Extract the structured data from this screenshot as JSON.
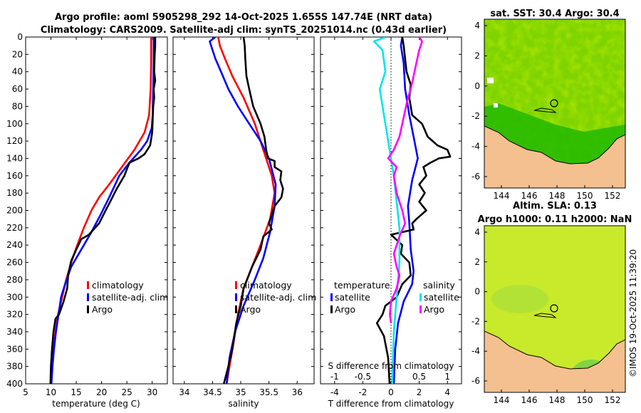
{
  "header": {
    "title_line1": "Argo profile: aoml 5905298_292 14-Oct-2025 1.655S 147.74E (NRT data)",
    "title_line2": "Climatology: CARS2009. Satellite-adj clim: synTS_20251014.nc (0.43d earlier)"
  },
  "chart_data": [
    {
      "type": "line",
      "panel": "temperature",
      "xlabel": "temperature (deg C)",
      "ylabel": "",
      "xlim": [
        5,
        33
      ],
      "ylim": [
        400,
        0
      ],
      "xticks": [
        5,
        10,
        15,
        20,
        25,
        30
      ],
      "yticks": [
        0,
        20,
        40,
        60,
        80,
        100,
        120,
        140,
        160,
        180,
        200,
        220,
        240,
        260,
        280,
        300,
        320,
        340,
        360,
        380,
        400
      ],
      "legend": [
        "climatology",
        "satellite-adj. clim",
        "Argo"
      ],
      "series": [
        {
          "name": "climatology",
          "color": "#ff0000",
          "points": [
            [
              29.8,
              0
            ],
            [
              29.8,
              30
            ],
            [
              29.7,
              60
            ],
            [
              29.4,
              90
            ],
            [
              28.5,
              110
            ],
            [
              26.5,
              130
            ],
            [
              24,
              150
            ],
            [
              21.5,
              170
            ],
            [
              19.5,
              185
            ],
            [
              18,
              200
            ],
            [
              16.5,
              220
            ],
            [
              15.2,
              240
            ],
            [
              14,
              260
            ],
            [
              13,
              280
            ],
            [
              12.2,
              300
            ],
            [
              11.4,
              320
            ],
            [
              10.9,
              340
            ],
            [
              10.5,
              360
            ],
            [
              10.2,
              380
            ],
            [
              10,
              400
            ]
          ]
        },
        {
          "name": "satellite-adj. clim",
          "color": "#0000ff",
          "points": [
            [
              30.3,
              0
            ],
            [
              30.3,
              30
            ],
            [
              30.2,
              60
            ],
            [
              30.1,
              90
            ],
            [
              29.9,
              105
            ],
            [
              29,
              120
            ],
            [
              27.8,
              130
            ],
            [
              25.5,
              145
            ],
            [
              23.5,
              160
            ],
            [
              21.5,
              185
            ],
            [
              19.8,
              205
            ],
            [
              18,
              225
            ],
            [
              16,
              245
            ],
            [
              14,
              265
            ],
            [
              12.8,
              285
            ],
            [
              12,
              300
            ],
            [
              11.5,
              320
            ],
            [
              11,
              340
            ],
            [
              10.6,
              360
            ],
            [
              10.3,
              380
            ],
            [
              10.1,
              400
            ]
          ]
        },
        {
          "name": "Argo",
          "color": "#000000",
          "points": [
            [
              30.6,
              0
            ],
            [
              30.6,
              10
            ],
            [
              30.5,
              20
            ],
            [
              30.4,
              40
            ],
            [
              30.6,
              50
            ],
            [
              30.3,
              60
            ],
            [
              30.4,
              70
            ],
            [
              30.2,
              80
            ],
            [
              30.1,
              95
            ],
            [
              30,
              110
            ],
            [
              29.6,
              125
            ],
            [
              28.5,
              135
            ],
            [
              27.3,
              140
            ],
            [
              25.5,
              145
            ],
            [
              24.5,
              160
            ],
            [
              23,
              175
            ],
            [
              21.7,
              190
            ],
            [
              20.8,
              200
            ],
            [
              19.5,
              215
            ],
            [
              17.5,
              228
            ],
            [
              16,
              233
            ],
            [
              15,
              245
            ],
            [
              14,
              258
            ],
            [
              13.4,
              275
            ],
            [
              13.2,
              290
            ],
            [
              12.5,
              305
            ],
            [
              11.6,
              320
            ],
            [
              10.9,
              325
            ],
            [
              10.5,
              340
            ],
            [
              10.2,
              360
            ],
            [
              10,
              380
            ],
            [
              9.9,
              400
            ]
          ]
        }
      ]
    },
    {
      "type": "line",
      "panel": "salinity",
      "xlabel": "salinity",
      "xlim": [
        33.8,
        36.3
      ],
      "ylim": [
        400,
        0
      ],
      "xticks": [
        34,
        34.5,
        35,
        35.5,
        36
      ],
      "legend": [
        "climatology",
        "satellite-adj. clim",
        "Argo"
      ],
      "series": [
        {
          "name": "climatology",
          "color": "#ff0000",
          "points": [
            [
              34.6,
              0
            ],
            [
              34.63,
              10
            ],
            [
              34.72,
              25
            ],
            [
              34.85,
              45
            ],
            [
              35.05,
              70
            ],
            [
              35.25,
              100
            ],
            [
              35.4,
              130
            ],
            [
              35.55,
              160
            ],
            [
              35.6,
              180
            ],
            [
              35.52,
              210
            ],
            [
              35.35,
              240
            ],
            [
              35.2,
              265
            ],
            [
              35.05,
              290
            ],
            [
              34.95,
              320
            ],
            [
              34.88,
              350
            ],
            [
              34.8,
              380
            ],
            [
              34.75,
              400
            ]
          ]
        },
        {
          "name": "satellite-adj. clim",
          "color": "#0000ff",
          "points": [
            [
              34.55,
              0
            ],
            [
              34.45,
              5
            ],
            [
              34.5,
              15
            ],
            [
              34.55,
              25
            ],
            [
              34.65,
              40
            ],
            [
              34.78,
              60
            ],
            [
              34.95,
              80
            ],
            [
              35.15,
              100
            ],
            [
              35.35,
              120
            ],
            [
              35.5,
              140
            ],
            [
              35.62,
              170
            ],
            [
              35.6,
              195
            ],
            [
              35.52,
              225
            ],
            [
              35.4,
              255
            ],
            [
              35.25,
              280
            ],
            [
              35.05,
              310
            ],
            [
              34.9,
              340
            ],
            [
              34.8,
              370
            ],
            [
              34.75,
              400
            ]
          ]
        },
        {
          "name": "Argo",
          "color": "#000000",
          "points": [
            [
              35.05,
              0
            ],
            [
              35.07,
              10
            ],
            [
              35.08,
              25
            ],
            [
              35.1,
              45
            ],
            [
              35.15,
              60
            ],
            [
              35.22,
              80
            ],
            [
              35.35,
              100
            ],
            [
              35.42,
              115
            ],
            [
              35.45,
              130
            ],
            [
              35.48,
              140
            ],
            [
              35.6,
              143
            ],
            [
              35.6,
              150
            ],
            [
              35.72,
              155
            ],
            [
              35.7,
              165
            ],
            [
              35.75,
              175
            ],
            [
              35.72,
              185
            ],
            [
              35.6,
              195
            ],
            [
              35.55,
              205
            ],
            [
              35.5,
              215
            ],
            [
              35.55,
              222
            ],
            [
              35.4,
              230
            ],
            [
              35.35,
              245
            ],
            [
              35.2,
              265
            ],
            [
              35.05,
              290
            ],
            [
              35.0,
              310
            ],
            [
              34.92,
              330
            ],
            [
              34.85,
              360
            ],
            [
              34.78,
              380
            ],
            [
              34.7,
              400
            ]
          ]
        }
      ]
    },
    {
      "type": "line",
      "panel": "difference",
      "xlabel": "T difference from climatology",
      "xlabel_top": "S difference from climatology",
      "xlim": [
        -5,
        5
      ],
      "ylim": [
        400,
        0
      ],
      "xticks": [
        -4,
        -2,
        0,
        2,
        4
      ],
      "xticks_top": [
        -1,
        -0.5,
        0,
        0.5,
        1
      ],
      "xtick_labels_top": [
        "-1",
        "-0.5",
        "0",
        "0.5",
        "1"
      ],
      "legend_temperature": {
        "title": "temperature",
        "items": [
          "satellite",
          "Argo"
        ]
      },
      "legend_salinity": {
        "title": "salinity",
        "items": [
          "satellite",
          "Argo"
        ]
      },
      "series": [
        {
          "name": "temperature satellite",
          "color": "#0000ff",
          "points": [
            [
              0.8,
              0
            ],
            [
              0.7,
              10
            ],
            [
              0.9,
              30
            ],
            [
              1,
              60
            ],
            [
              1.3,
              90
            ],
            [
              1.6,
              115
            ],
            [
              1.9,
              140
            ],
            [
              1.5,
              165
            ],
            [
              1.2,
              195
            ],
            [
              1.3,
              215
            ],
            [
              1.4,
              245
            ],
            [
              1.6,
              270
            ],
            [
              1.5,
              285
            ],
            [
              0.9,
              305
            ],
            [
              0.5,
              330
            ],
            [
              0.3,
              360
            ],
            [
              0.2,
              400
            ]
          ]
        },
        {
          "name": "temperature Argo",
          "color": "#000000",
          "points": [
            [
              0.8,
              0
            ],
            [
              0.9,
              10
            ],
            [
              1.1,
              40
            ],
            [
              1.4,
              55
            ],
            [
              1.3,
              70
            ],
            [
              1.5,
              90
            ],
            [
              2.2,
              100
            ],
            [
              2.6,
              115
            ],
            [
              3.3,
              125
            ],
            [
              4,
              130
            ],
            [
              4.2,
              138
            ],
            [
              3.4,
              140
            ],
            [
              2.8,
              145
            ],
            [
              2.3,
              150
            ],
            [
              2.5,
              160
            ],
            [
              2,
              170
            ],
            [
              2.4,
              180
            ],
            [
              2,
              190
            ],
            [
              2.5,
              200
            ],
            [
              1.8,
              210
            ],
            [
              1.5,
              215
            ],
            [
              1.6,
              222
            ],
            [
              0,
              228
            ],
            [
              0.8,
              240
            ],
            [
              0.7,
              250
            ],
            [
              1.3,
              260
            ],
            [
              1.4,
              275
            ],
            [
              0.8,
              285
            ],
            [
              0.4,
              300
            ],
            [
              -0.4,
              310
            ],
            [
              -0.6,
              320
            ],
            [
              -1,
              330
            ],
            [
              -0.5,
              345
            ],
            [
              -0.2,
              370
            ],
            [
              -0.1,
              400
            ]
          ]
        },
        {
          "name": "salinity satellite",
          "color": "#00e5ee",
          "points": [
            [
              -0.1,
              0
            ],
            [
              -0.3,
              5
            ],
            [
              -0.15,
              15
            ],
            [
              -0.1,
              40
            ],
            [
              -0.2,
              60
            ],
            [
              -0.15,
              80
            ],
            [
              -0.1,
              100
            ],
            [
              -0.05,
              120
            ],
            [
              0,
              140
            ],
            [
              0.05,
              160
            ],
            [
              0.1,
              190
            ],
            [
              0.15,
              220
            ],
            [
              0.15,
              260
            ],
            [
              0.1,
              300
            ],
            [
              0.05,
              340
            ],
            [
              0.02,
              400
            ]
          ]
        },
        {
          "name": "salinity Argo",
          "color": "#ff00ff",
          "points": [
            [
              0.5,
              0
            ],
            [
              0.55,
              5
            ],
            [
              0.5,
              15
            ],
            [
              0.45,
              30
            ],
            [
              0.4,
              45
            ],
            [
              0.35,
              60
            ],
            [
              0.3,
              70
            ],
            [
              0.25,
              85
            ],
            [
              0.2,
              100
            ],
            [
              0.15,
              115
            ],
            [
              0.05,
              130
            ],
            [
              -0.05,
              140
            ],
            [
              0.1,
              150
            ],
            [
              0.05,
              160
            ],
            [
              0.1,
              180
            ],
            [
              0.2,
              200
            ],
            [
              0.25,
              215
            ],
            [
              0.15,
              230
            ],
            [
              0.05,
              250
            ],
            [
              0.1,
              265
            ],
            [
              0.15,
              275
            ],
            [
              0.1,
              290
            ],
            [
              0,
              305
            ],
            [
              -0.02,
              320
            ],
            [
              0,
              330
            ]
          ]
        }
      ]
    }
  ],
  "maps": {
    "sst": {
      "title": "sat. SST: 30.4 Argo: 30.4",
      "xticks": [
        "144",
        "146",
        "148",
        "150",
        "152"
      ],
      "yticks": [
        "4",
        "2",
        "0",
        "-2",
        "-4",
        "-6"
      ]
    },
    "sla": {
      "title_line1": "Altim. SLA: 0.13",
      "title_line2": "Argo h1000: 0.11 h2000: NaN",
      "xticks": [
        "144",
        "146",
        "148",
        "150",
        "152"
      ],
      "yticks": [
        "4",
        "2",
        "0",
        "-2",
        "-4",
        "-6"
      ]
    }
  },
  "footer": {
    "watermark": "©IMOS 19-Oct-2025 11:39:20"
  }
}
